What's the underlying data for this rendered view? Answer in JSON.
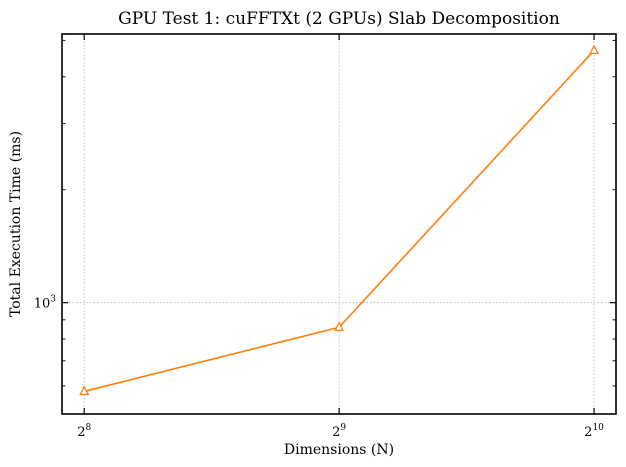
{
  "chart_data": {
    "type": "line",
    "title": "GPU Test 1: cuFFTXt (2 GPUs) Slab Decomposition",
    "xlabel": "Dimensions (N)",
    "ylabel": "Total Execution Time (ms)",
    "x_scale": "log2",
    "y_scale": "log10",
    "x": [
      256,
      512,
      1024
    ],
    "x_tick_labels": [
      {
        "base": "2",
        "exp": "8"
      },
      {
        "base": "2",
        "exp": "9"
      },
      {
        "base": "2",
        "exp": "10"
      }
    ],
    "y_tick_labels": [
      {
        "value": 1000,
        "base": "10",
        "exp": "3"
      }
    ],
    "xlim": [
      241,
      1087
    ],
    "ylim": [
      505,
      5200
    ],
    "grid": true,
    "series": [
      {
        "values": [
          580,
          860,
          4700
        ],
        "color": "#ff7f0e",
        "marker": "triangle-open"
      }
    ]
  }
}
